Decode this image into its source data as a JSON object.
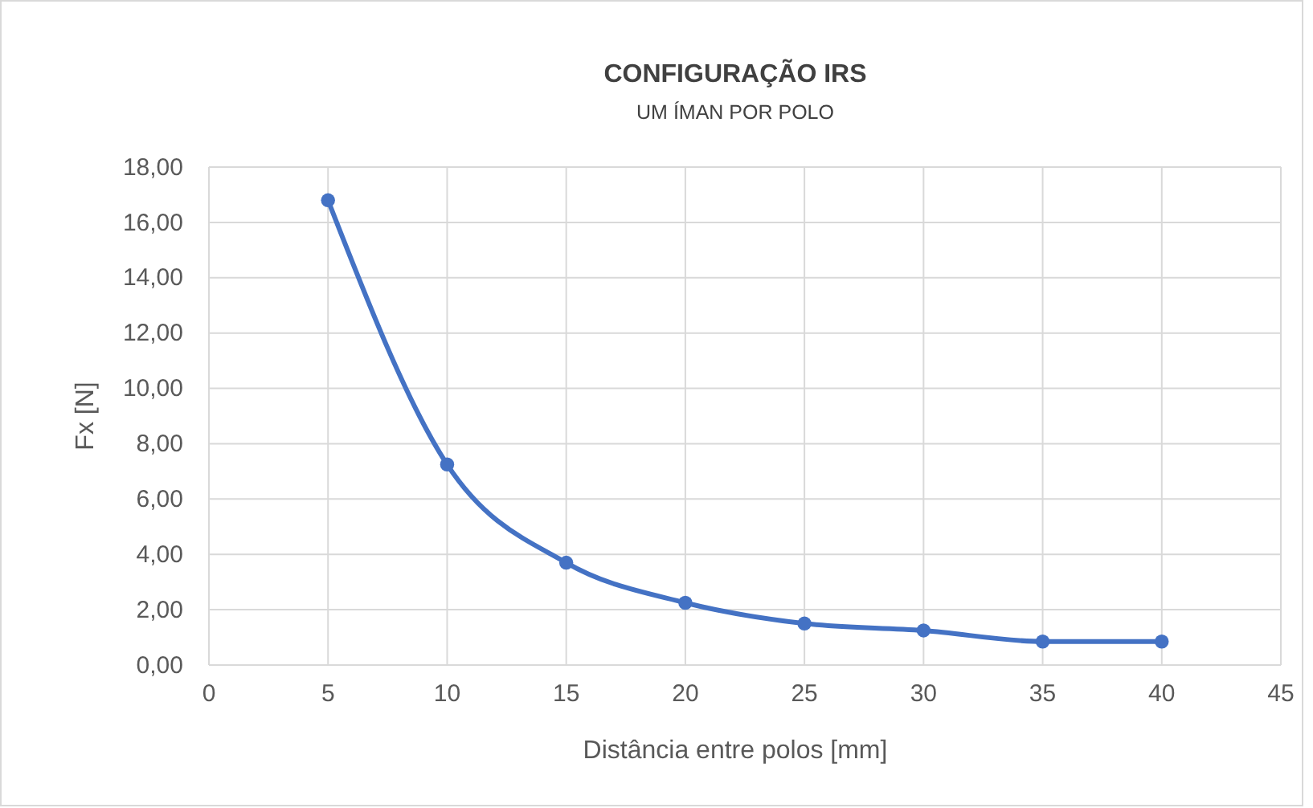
{
  "chart_data": {
    "type": "line",
    "title": "CONFIGURAÇÃO IRS",
    "subtitle": "UM ÍMAN POR POLO",
    "xlabel": "Distância entre polos [mm]",
    "ylabel": "Fx [N]",
    "x": [
      5,
      10,
      15,
      20,
      25,
      30,
      35,
      40
    ],
    "series": [
      {
        "color": "#4472c4",
        "values": [
          16.8,
          7.25,
          3.7,
          2.25,
          1.5,
          1.25,
          0.85,
          0.85
        ]
      }
    ],
    "xlim": [
      0,
      45
    ],
    "xticks": [
      0,
      5,
      10,
      15,
      20,
      25,
      30,
      35,
      40,
      45
    ],
    "ylim": [
      0,
      18
    ],
    "yticks": [
      {
        "value": 0,
        "label": "0,00"
      },
      {
        "value": 2,
        "label": "2,00"
      },
      {
        "value": 4,
        "label": "4,00"
      },
      {
        "value": 6,
        "label": "6,00"
      },
      {
        "value": 8,
        "label": "8,00"
      },
      {
        "value": 10,
        "label": "10,00"
      },
      {
        "value": 12,
        "label": "12,00"
      },
      {
        "value": 14,
        "label": "14,00"
      },
      {
        "value": 16,
        "label": "16,00"
      },
      {
        "value": 18,
        "label": "18,00"
      }
    ],
    "grid": true,
    "marker": "circle",
    "line_style": "solid"
  }
}
